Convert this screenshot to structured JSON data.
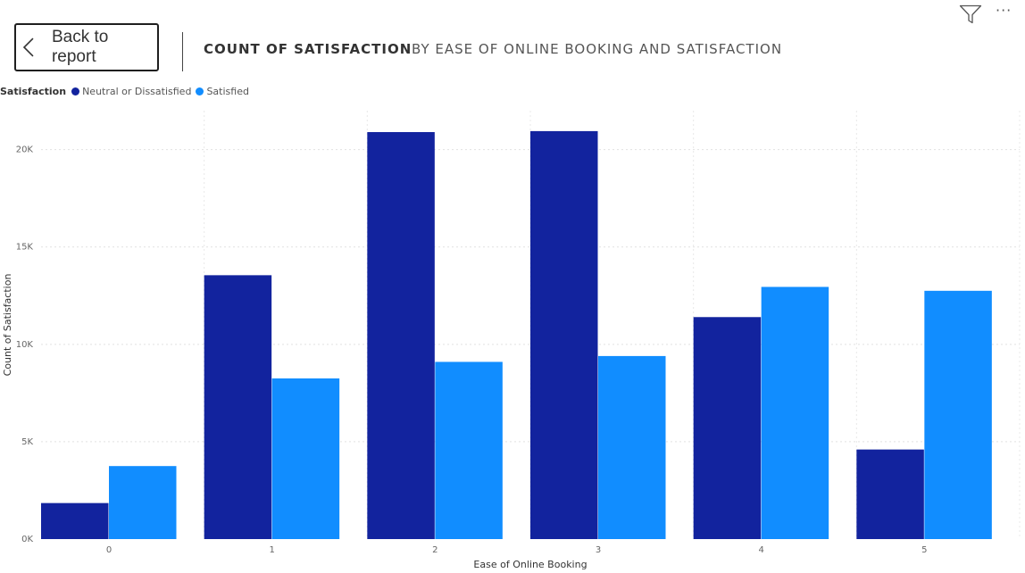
{
  "header": {
    "back_label": "Back to report",
    "title": "COUNT OF SATISFACTION",
    "subtitle": "BY EASE OF ONLINE BOOKING AND SATISFACTION",
    "more_label": "···"
  },
  "icons": {
    "back": "chevron-left-icon",
    "filter": "filter-icon",
    "more": "more-options-icon"
  },
  "legend": {
    "title": "Satisfaction",
    "items": [
      {
        "label": "Neutral or Dissatisfied",
        "color": "#12239e"
      },
      {
        "label": "Satisfied",
        "color": "#118dff"
      }
    ]
  },
  "chart_data": {
    "type": "bar",
    "categories": [
      "0",
      "1",
      "2",
      "3",
      "4",
      "5"
    ],
    "series": [
      {
        "name": "Neutral or Dissatisfied",
        "color": "#12239e",
        "values": [
          1850,
          13550,
          20900,
          20950,
          11400,
          4600
        ]
      },
      {
        "name": "Satisfied",
        "color": "#118dff",
        "values": [
          3750,
          8250,
          9100,
          9400,
          12950,
          12750
        ]
      }
    ],
    "xlabel": "Ease of Online Booking",
    "ylabel": "Count of Satisfaction",
    "ylim": [
      0,
      22000
    ],
    "yticks": [
      0,
      5000,
      10000,
      15000,
      20000
    ],
    "ytick_labels": [
      "0K",
      "5K",
      "10K",
      "15K",
      "20K"
    ],
    "grid": true,
    "legend": "top-left"
  }
}
